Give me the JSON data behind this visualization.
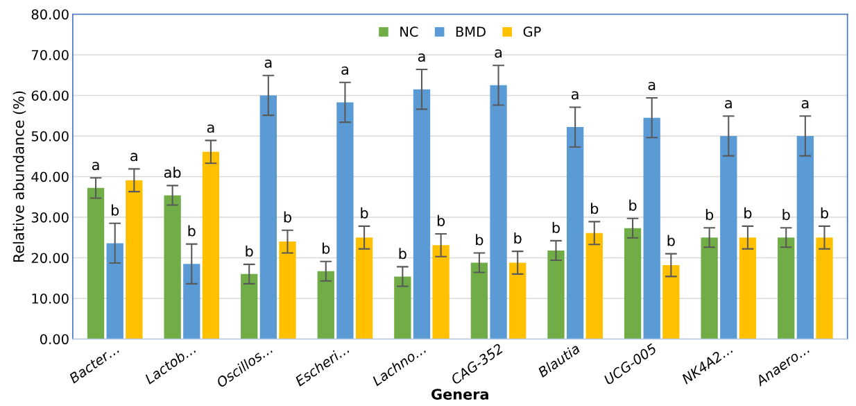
{
  "chart_data": {
    "type": "bar",
    "xlabel": "Genera",
    "ylabel": "Relative abundance (%)",
    "categories": [
      "Bacter…",
      "Lactob…",
      "Oscillos…",
      "Escheri…",
      "Lachno…",
      "CAG-352",
      "Blautia",
      "UCG-005",
      "NK4A2…",
      "Anaero…"
    ],
    "series": [
      {
        "name": "NC",
        "color": "#70ad47",
        "values": [
          37.2,
          35.4,
          16.0,
          16.7,
          15.4,
          18.8,
          21.8,
          27.3,
          25.0,
          25.0
        ],
        "errors": [
          2.5,
          2.4,
          2.4,
          2.4,
          2.4,
          2.4,
          2.4,
          2.4,
          2.4,
          2.4
        ],
        "value_labels": [
          "a",
          "ab",
          "b",
          "b",
          "b",
          "b",
          "b",
          "b",
          "b",
          "b"
        ]
      },
      {
        "name": "BMD",
        "color": "#5b9bd5",
        "values": [
          23.6,
          18.5,
          60.0,
          58.3,
          61.5,
          62.5,
          52.2,
          54.5,
          50.0,
          50.0
        ],
        "errors": [
          4.9,
          4.9,
          4.9,
          4.9,
          4.9,
          4.9,
          4.9,
          4.9,
          4.9,
          4.9
        ],
        "value_labels": [
          "b",
          "b",
          "a",
          "a",
          "a",
          "a",
          "a",
          "a",
          "a",
          "a"
        ]
      },
      {
        "name": "GP",
        "color": "#ffc000",
        "values": [
          39.1,
          46.1,
          24.0,
          25.0,
          23.1,
          18.8,
          26.1,
          18.2,
          25.0,
          25.0
        ],
        "errors": [
          2.8,
          2.8,
          2.8,
          2.8,
          2.8,
          2.8,
          2.8,
          2.8,
          2.8,
          2.8
        ],
        "value_labels": [
          "a",
          "a",
          "b",
          "b",
          "b",
          "b",
          "b",
          "b",
          "b",
          "b"
        ]
      }
    ],
    "ylim": [
      0,
      80
    ],
    "yticks": [
      {
        "value": 0,
        "label": "0.00"
      },
      {
        "value": 10,
        "label": "10.00"
      },
      {
        "value": 20,
        "label": "20.00"
      },
      {
        "value": 30,
        "label": "30.00"
      },
      {
        "value": 40,
        "label": "40.00"
      },
      {
        "value": 50,
        "label": "50.00"
      },
      {
        "value": 60,
        "label": "60.00"
      },
      {
        "value": 70,
        "label": "70.00"
      },
      {
        "value": 80,
        "label": "80.00"
      }
    ],
    "grid": "y",
    "legend": "top"
  }
}
